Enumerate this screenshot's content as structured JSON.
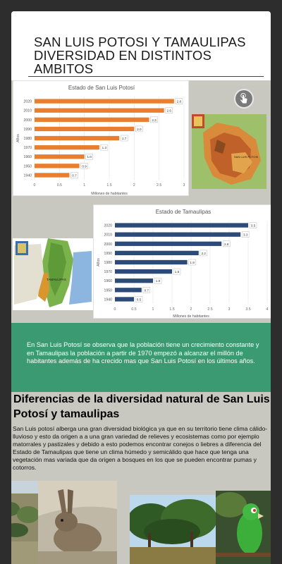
{
  "header": {
    "title_line1": "SAN LUIS POTOSI Y TAMAULIPAS",
    "title_line2": "DIVERSIDAD EN DISTINTOS AMBITOS"
  },
  "maps": {
    "slp_label": "SAN LUIS POTOSI",
    "tamaulipas_label": "TAMAULIPAS"
  },
  "summary": {
    "text": "En San Luis Potosí se observa que la población tiene un crecimiento constante y en Tamaulipas la población a partir de 1970 empezó a alcanzar el millón de habitantes además de ha crecido mas que San Luis Potosí en los últimos años."
  },
  "diversity": {
    "heading": "Diferencias de la diversidad natural de San Luis Potosí y tamaulipas",
    "body": "San Luis potosí alberga una gran diversidad biológica ya que  en su territorio tiene clima cálido-lluvioso y esto da origen a a una gran variedad de  relieves y ecosistemas como por ejemplo matorrales y pastizales y debido a esto podemos encontrar conejos o liebres a diferencia del Estado de Tamaulipas que tiene un clima húmedo y semicálido que hace que tenga una vegetación mas variada que da origen a  bosques en los que se pueden encontrar pumas y cotorros."
  },
  "colors": {
    "slp_bar": "#e87e2e",
    "tam_bar": "#2c4b78",
    "green": "#3c9a72"
  },
  "chart_data": [
    {
      "type": "bar",
      "orientation": "horizontal",
      "title": "Estado de San Luis Potosí",
      "xlabel": "Millones de habitantes",
      "ylabel": "Años",
      "categories": [
        "2020",
        "2010",
        "2000",
        "1990",
        "1980",
        "1970",
        "1960",
        "1950",
        "1940"
      ],
      "values": [
        2.8,
        2.6,
        2.3,
        2.0,
        1.7,
        1.3,
        1.0,
        0.9,
        0.7
      ],
      "value_labels": [
        "2.8",
        "2.6",
        "2.3",
        "2.0",
        "1.7",
        "1.3",
        "1.0",
        "0.9",
        "0.7"
      ],
      "xlim": [
        0,
        3
      ],
      "xticks": [
        "0",
        "0.5",
        "1",
        "1.5",
        "2",
        "2.5",
        "3"
      ],
      "color": "#e87e2e"
    },
    {
      "type": "bar",
      "orientation": "horizontal",
      "title": "Estado de Tamaulipas",
      "xlabel": "Millones de habitantes",
      "ylabel": "Años",
      "categories": [
        "2020",
        "2010",
        "2000",
        "1990",
        "1980",
        "1970",
        "1960",
        "1950",
        "1940"
      ],
      "values": [
        3.5,
        3.3,
        2.8,
        2.2,
        1.9,
        1.5,
        1.0,
        0.7,
        0.5
      ],
      "value_labels": [
        "3.5",
        "3.3",
        "2.8",
        "2.2",
        "1.9",
        "1.5",
        "1.0",
        "0.7",
        "0.5"
      ],
      "xlim": [
        0,
        4
      ],
      "xticks": [
        "0",
        "0.5",
        "1",
        "1.5",
        "2",
        "2.5",
        "3",
        "3.5",
        "4"
      ],
      "color": "#2c4b78"
    }
  ]
}
